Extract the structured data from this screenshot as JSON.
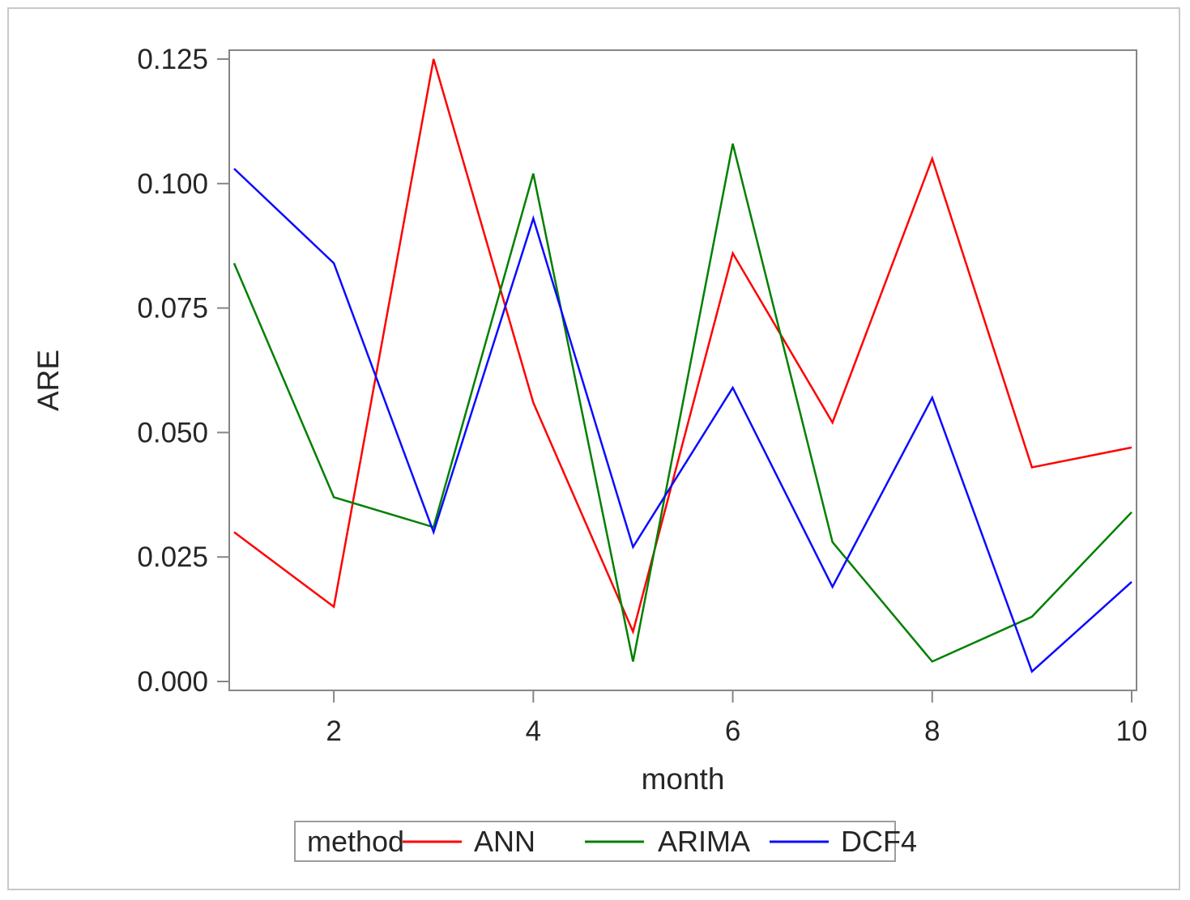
{
  "chart_data": {
    "type": "line",
    "title": "",
    "xlabel": "month",
    "ylabel": "ARE",
    "x": [
      1,
      2,
      3,
      4,
      5,
      6,
      7,
      8,
      9,
      10
    ],
    "xticks": [
      2,
      4,
      6,
      8,
      10
    ],
    "yticks": [
      0.0,
      0.025,
      0.05,
      0.075,
      0.1,
      0.125
    ],
    "ylim": [
      0.0,
      0.125
    ],
    "xlim": [
      1,
      10
    ],
    "grid": "off",
    "legend_position": "bottom",
    "legend_title": "method",
    "series": [
      {
        "name": "ANN",
        "color": "#fe0000",
        "values": [
          0.03,
          0.015,
          0.125,
          0.056,
          0.01,
          0.086,
          0.052,
          0.105,
          0.043,
          0.047
        ]
      },
      {
        "name": "ARIMA",
        "color": "#008000",
        "values": [
          0.084,
          0.037,
          0.031,
          0.102,
          0.004,
          0.108,
          0.028,
          0.004,
          0.013,
          0.034
        ]
      },
      {
        "name": "DCF4",
        "color": "#0b0bff",
        "values": [
          0.103,
          0.084,
          0.03,
          0.093,
          0.027,
          0.059,
          0.019,
          0.057,
          0.002,
          0.02
        ]
      }
    ],
    "frame_color": "#868686",
    "text_color": "#262626",
    "legend_border_color": "#9d9d9d"
  }
}
